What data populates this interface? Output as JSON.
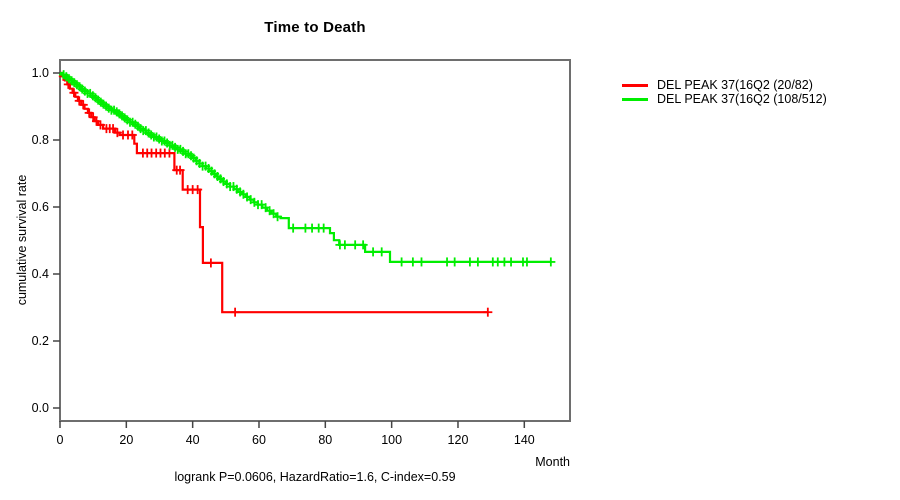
{
  "chart_data": {
    "type": "line",
    "subtype": "kaplan-meier-step-survival",
    "title": "Time to Death",
    "xlabel": "Month",
    "ylabel": "cumulative survival rate",
    "caption": "logrank P=0.0606, HazardRatio=1.6, C-index=0.59",
    "x_ticks": [
      0,
      20,
      40,
      60,
      80,
      100,
      120,
      140
    ],
    "y_ticks": [
      0.0,
      0.2,
      0.4,
      0.6,
      0.8,
      1.0
    ],
    "xlim": [
      0,
      154
    ],
    "ylim": [
      0,
      1.04
    ],
    "grid": false,
    "legend_position": "right-outside",
    "axis_color": "#6e6e6e",
    "tick_color": "#444444",
    "series": [
      {
        "name": "DEL PEAK 37(16Q2 (20/82)",
        "color": "#ff0000",
        "end_month": 129,
        "steps": [
          [
            0,
            1.0
          ],
          [
            0.8,
            0.99
          ],
          [
            1.5,
            0.978
          ],
          [
            2.2,
            0.966
          ],
          [
            3,
            0.953
          ],
          [
            3.8,
            0.941
          ],
          [
            4.6,
            0.929
          ],
          [
            5.4,
            0.917
          ],
          [
            6.4,
            0.905
          ],
          [
            7.4,
            0.893
          ],
          [
            8.4,
            0.881
          ],
          [
            9.4,
            0.868
          ],
          [
            10.4,
            0.856
          ],
          [
            11.5,
            0.845
          ],
          [
            13,
            0.834
          ],
          [
            16.6,
            0.822
          ],
          [
            18,
            0.815
          ],
          [
            22.4,
            0.789
          ],
          [
            23.2,
            0.761
          ],
          [
            34.5,
            0.71
          ],
          [
            37,
            0.652
          ],
          [
            42.2,
            0.54
          ],
          [
            43.1,
            0.433
          ],
          [
            48.9,
            0.286
          ]
        ],
        "censor_months": [
          1.0,
          2.5,
          4.2,
          5.8,
          7.0,
          8.8,
          10.0,
          11.0,
          12.2,
          14,
          15,
          16,
          17.3,
          19,
          20.5,
          21.8,
          25,
          26.3,
          27.6,
          29,
          30.3,
          31.6,
          33,
          35.2,
          36.2,
          38.5,
          40,
          41.5,
          45.5,
          52.8,
          129
        ]
      },
      {
        "name": "DEL PEAK 37(16Q2 (108/512)",
        "color": "#00ee00",
        "end_month": 148,
        "steps": [
          [
            0,
            1.0
          ],
          [
            0.7,
            0.995
          ],
          [
            1.5,
            0.989
          ],
          [
            2.3,
            0.983
          ],
          [
            3.1,
            0.977
          ],
          [
            3.9,
            0.971
          ],
          [
            4.7,
            0.965
          ],
          [
            5.6,
            0.959
          ],
          [
            6.5,
            0.952
          ],
          [
            7.4,
            0.946
          ],
          [
            8.3,
            0.939
          ],
          [
            9.2,
            0.932
          ],
          [
            10.1,
            0.926
          ],
          [
            11,
            0.919
          ],
          [
            11.9,
            0.913
          ],
          [
            12.8,
            0.907
          ],
          [
            13.7,
            0.901
          ],
          [
            14.6,
            0.895
          ],
          [
            15.5,
            0.889
          ],
          [
            16.4,
            0.884
          ],
          [
            17.3,
            0.878
          ],
          [
            18.2,
            0.872
          ],
          [
            19.1,
            0.866
          ],
          [
            20,
            0.86
          ],
          [
            21,
            0.853
          ],
          [
            22,
            0.847
          ],
          [
            23,
            0.841
          ],
          [
            24,
            0.834
          ],
          [
            25,
            0.828
          ],
          [
            26,
            0.821
          ],
          [
            27,
            0.815
          ],
          [
            28.2,
            0.809
          ],
          [
            29.4,
            0.803
          ],
          [
            30.6,
            0.797
          ],
          [
            31.8,
            0.791
          ],
          [
            33,
            0.784
          ],
          [
            34.2,
            0.778
          ],
          [
            35.4,
            0.772
          ],
          [
            36.6,
            0.766
          ],
          [
            37.8,
            0.759
          ],
          [
            39,
            0.753
          ],
          [
            40,
            0.746
          ],
          [
            41,
            0.738
          ],
          [
            42,
            0.73
          ],
          [
            43,
            0.722
          ],
          [
            44,
            0.715
          ],
          [
            45,
            0.707
          ],
          [
            46,
            0.699
          ],
          [
            47,
            0.691
          ],
          [
            48,
            0.684
          ],
          [
            49,
            0.676
          ],
          [
            50,
            0.669
          ],
          [
            51.2,
            0.661
          ],
          [
            52.4,
            0.653
          ],
          [
            53.6,
            0.645
          ],
          [
            54.8,
            0.638
          ],
          [
            56,
            0.63
          ],
          [
            57.2,
            0.622
          ],
          [
            58.4,
            0.614
          ],
          [
            59.6,
            0.607
          ],
          [
            61,
            0.598
          ],
          [
            62.4,
            0.589
          ],
          [
            63.8,
            0.58
          ],
          [
            65.2,
            0.571
          ],
          [
            66.5,
            0.567
          ],
          [
            69,
            0.537
          ],
          [
            81.4,
            0.522
          ],
          [
            82.6,
            0.501
          ],
          [
            84.2,
            0.487
          ],
          [
            92,
            0.466
          ],
          [
            99.5,
            0.436
          ]
        ],
        "censor_months": [
          1.1,
          1.9,
          2.7,
          3.5,
          4.3,
          5.1,
          5.9,
          6.7,
          7.5,
          8.3,
          9.1,
          9.9,
          10.7,
          11.5,
          12.3,
          13.1,
          13.9,
          14.7,
          15.5,
          16.3,
          17.1,
          17.9,
          18.7,
          19.5,
          20.3,
          21.1,
          21.9,
          22.7,
          23.5,
          24.3,
          25.1,
          25.9,
          26.7,
          27.5,
          28.3,
          29.1,
          29.9,
          30.7,
          31.5,
          32.3,
          33.1,
          33.9,
          34.7,
          35.5,
          36.3,
          37.1,
          37.9,
          38.7,
          39.5,
          40.3,
          41.2,
          42.1,
          43,
          43.9,
          44.8,
          45.7,
          46.6,
          47.5,
          48.4,
          49.3,
          50.3,
          51.3,
          52.3,
          53.3,
          54.3,
          55.3,
          56.4,
          57.5,
          58.6,
          59.7,
          60.8,
          62,
          63.2,
          64.4,
          65.6,
          70.3,
          74,
          76,
          78,
          79.5,
          84.4,
          85.9,
          89,
          91.4,
          94.4,
          97,
          103,
          106.4,
          109,
          116.7,
          119,
          123.6,
          126,
          130.5,
          132,
          134,
          136,
          139.6,
          140.8,
          148
        ]
      }
    ]
  }
}
